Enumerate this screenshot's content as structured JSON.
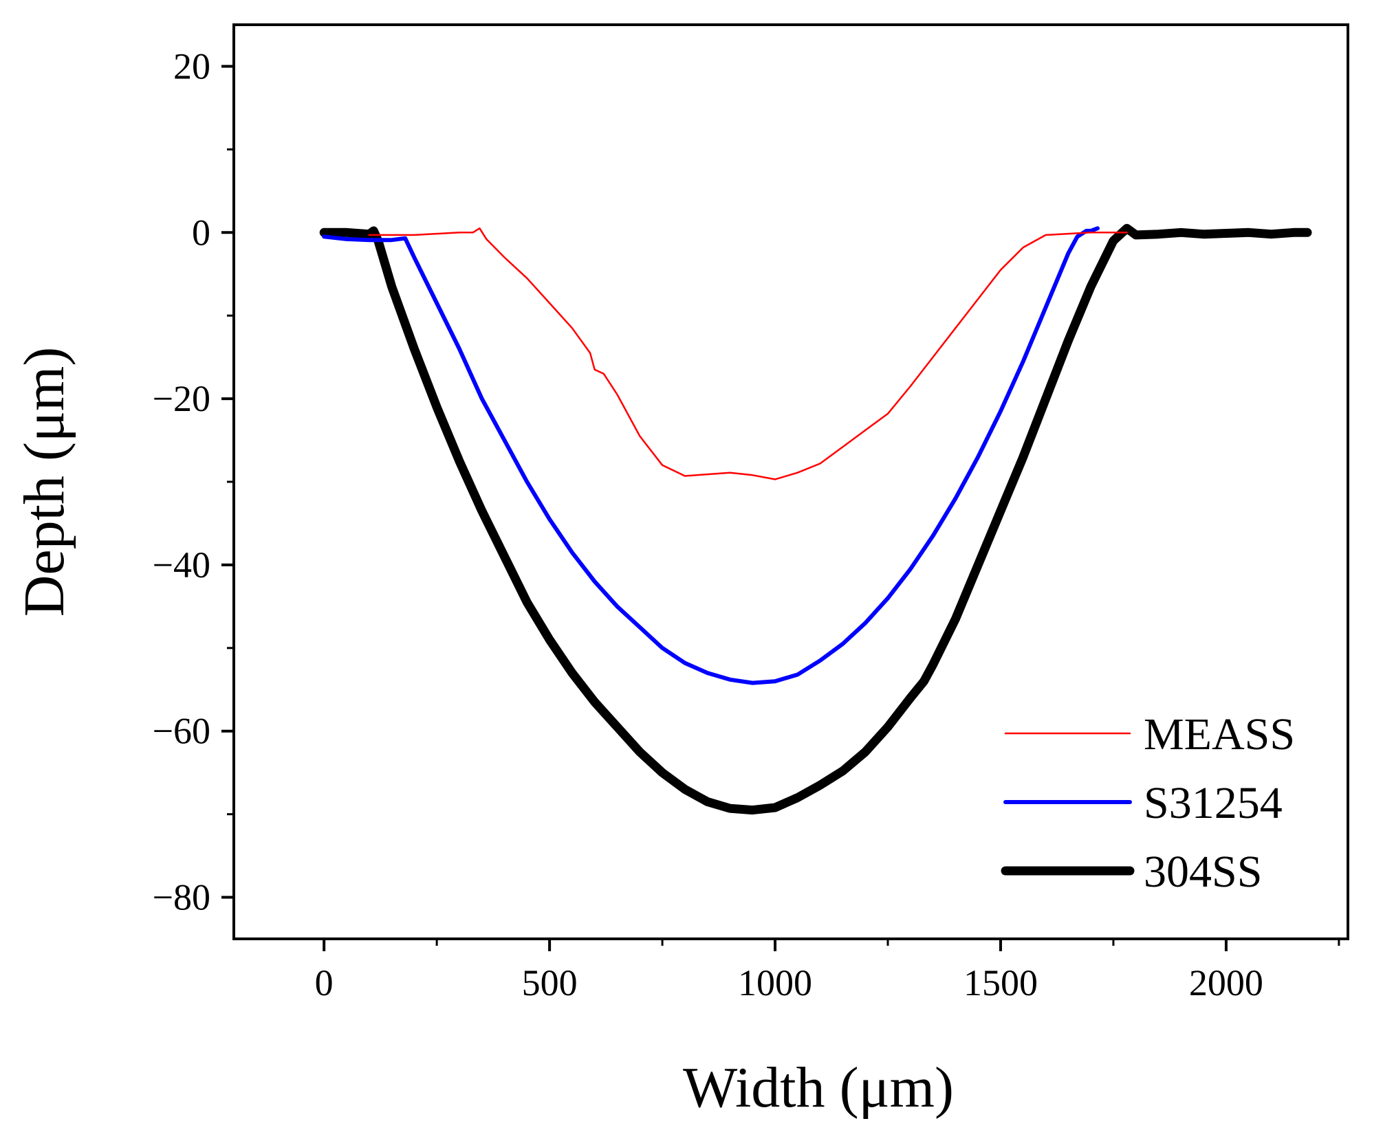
{
  "chart_data": {
    "type": "line",
    "title": "",
    "xlabel": "Width (μm)",
    "ylabel": "Depth (μm)",
    "xlim": [
      -200,
      2270
    ],
    "ylim": [
      -85,
      25
    ],
    "x_ticks": [
      0,
      500,
      1000,
      1500,
      2000
    ],
    "x_tick_labels": [
      "0",
      "500",
      "1000",
      "1500",
      "2000"
    ],
    "x_minor_ticks": [
      250,
      750,
      1250,
      1750,
      2250
    ],
    "y_ticks": [
      20,
      0,
      -20,
      -40,
      -60,
      -80
    ],
    "y_tick_labels": [
      "20",
      "0",
      "−20",
      "−40",
      "−60",
      "−80"
    ],
    "y_minor_ticks": [
      10,
      -10,
      -30,
      -50,
      -70
    ],
    "grid": false,
    "legend_position": "bottom-right",
    "series": [
      {
        "name": "MEASS",
        "color": "#ff0000",
        "points": [
          [
            100,
            -0.3
          ],
          [
            200,
            -0.3
          ],
          [
            300,
            0
          ],
          [
            330,
            0
          ],
          [
            345,
            0.5
          ],
          [
            360,
            -0.8
          ],
          [
            400,
            -3
          ],
          [
            450,
            -5.5
          ],
          [
            500,
            -8.5
          ],
          [
            550,
            -11.5
          ],
          [
            590,
            -14.5
          ],
          [
            600,
            -16.5
          ],
          [
            620,
            -17
          ],
          [
            650,
            -19.5
          ],
          [
            700,
            -24.5
          ],
          [
            750,
            -28
          ],
          [
            800,
            -29.3
          ],
          [
            850,
            -29.1
          ],
          [
            900,
            -28.9
          ],
          [
            950,
            -29.2
          ],
          [
            1000,
            -29.7
          ],
          [
            1050,
            -28.9
          ],
          [
            1100,
            -27.8
          ],
          [
            1150,
            -25.8
          ],
          [
            1200,
            -23.8
          ],
          [
            1250,
            -21.8
          ],
          [
            1300,
            -18.5
          ],
          [
            1350,
            -15
          ],
          [
            1400,
            -11.5
          ],
          [
            1450,
            -8
          ],
          [
            1500,
            -4.5
          ],
          [
            1550,
            -1.8
          ],
          [
            1600,
            -0.3
          ],
          [
            1700,
            0
          ],
          [
            1780,
            0
          ]
        ]
      },
      {
        "name": "S31254",
        "color": "#0000ff",
        "points": [
          [
            0,
            -0.5
          ],
          [
            50,
            -0.8
          ],
          [
            100,
            -0.9
          ],
          [
            150,
            -0.9
          ],
          [
            180,
            -0.7
          ],
          [
            200,
            -3
          ],
          [
            250,
            -8.5
          ],
          [
            300,
            -14
          ],
          [
            350,
            -20
          ],
          [
            400,
            -25
          ],
          [
            450,
            -30
          ],
          [
            500,
            -34.5
          ],
          [
            550,
            -38.5
          ],
          [
            600,
            -42
          ],
          [
            650,
            -45
          ],
          [
            700,
            -47.5
          ],
          [
            750,
            -50
          ],
          [
            800,
            -51.8
          ],
          [
            850,
            -53
          ],
          [
            900,
            -53.8
          ],
          [
            950,
            -54.2
          ],
          [
            1000,
            -54
          ],
          [
            1050,
            -53.2
          ],
          [
            1100,
            -51.5
          ],
          [
            1150,
            -49.5
          ],
          [
            1200,
            -47
          ],
          [
            1250,
            -44
          ],
          [
            1300,
            -40.5
          ],
          [
            1350,
            -36.5
          ],
          [
            1400,
            -32
          ],
          [
            1450,
            -27
          ],
          [
            1500,
            -21.5
          ],
          [
            1550,
            -15.5
          ],
          [
            1600,
            -9
          ],
          [
            1650,
            -2.5
          ],
          [
            1670,
            -0.5
          ],
          [
            1690,
            0.2
          ],
          [
            1700,
            0.2
          ],
          [
            1715,
            0.5
          ]
        ]
      },
      {
        "name": "304SS",
        "color": "#000000",
        "points": [
          [
            0,
            0
          ],
          [
            50,
            0
          ],
          [
            100,
            -0.2
          ],
          [
            110,
            0.2
          ],
          [
            120,
            -1
          ],
          [
            150,
            -6.5
          ],
          [
            200,
            -14
          ],
          [
            250,
            -21
          ],
          [
            300,
            -27.5
          ],
          [
            350,
            -33.5
          ],
          [
            400,
            -39
          ],
          [
            450,
            -44.5
          ],
          [
            500,
            -49
          ],
          [
            550,
            -53
          ],
          [
            600,
            -56.5
          ],
          [
            650,
            -59.5
          ],
          [
            700,
            -62.5
          ],
          [
            750,
            -65
          ],
          [
            800,
            -67
          ],
          [
            850,
            -68.5
          ],
          [
            900,
            -69.3
          ],
          [
            950,
            -69.5
          ],
          [
            1000,
            -69.2
          ],
          [
            1050,
            -68
          ],
          [
            1100,
            -66.5
          ],
          [
            1150,
            -64.8
          ],
          [
            1200,
            -62.5
          ],
          [
            1250,
            -59.5
          ],
          [
            1300,
            -56
          ],
          [
            1330,
            -54
          ],
          [
            1350,
            -52
          ],
          [
            1400,
            -46.5
          ],
          [
            1450,
            -40
          ],
          [
            1500,
            -33.5
          ],
          [
            1550,
            -27
          ],
          [
            1600,
            -20
          ],
          [
            1650,
            -13
          ],
          [
            1700,
            -6.5
          ],
          [
            1750,
            -1
          ],
          [
            1780,
            0.5
          ],
          [
            1800,
            -0.3
          ],
          [
            1850,
            -0.2
          ],
          [
            1900,
            0
          ],
          [
            1950,
            -0.2
          ],
          [
            2000,
            -0.1
          ],
          [
            2050,
            0
          ],
          [
            2100,
            -0.2
          ],
          [
            2150,
            0
          ],
          [
            2180,
            0
          ]
        ]
      }
    ]
  }
}
